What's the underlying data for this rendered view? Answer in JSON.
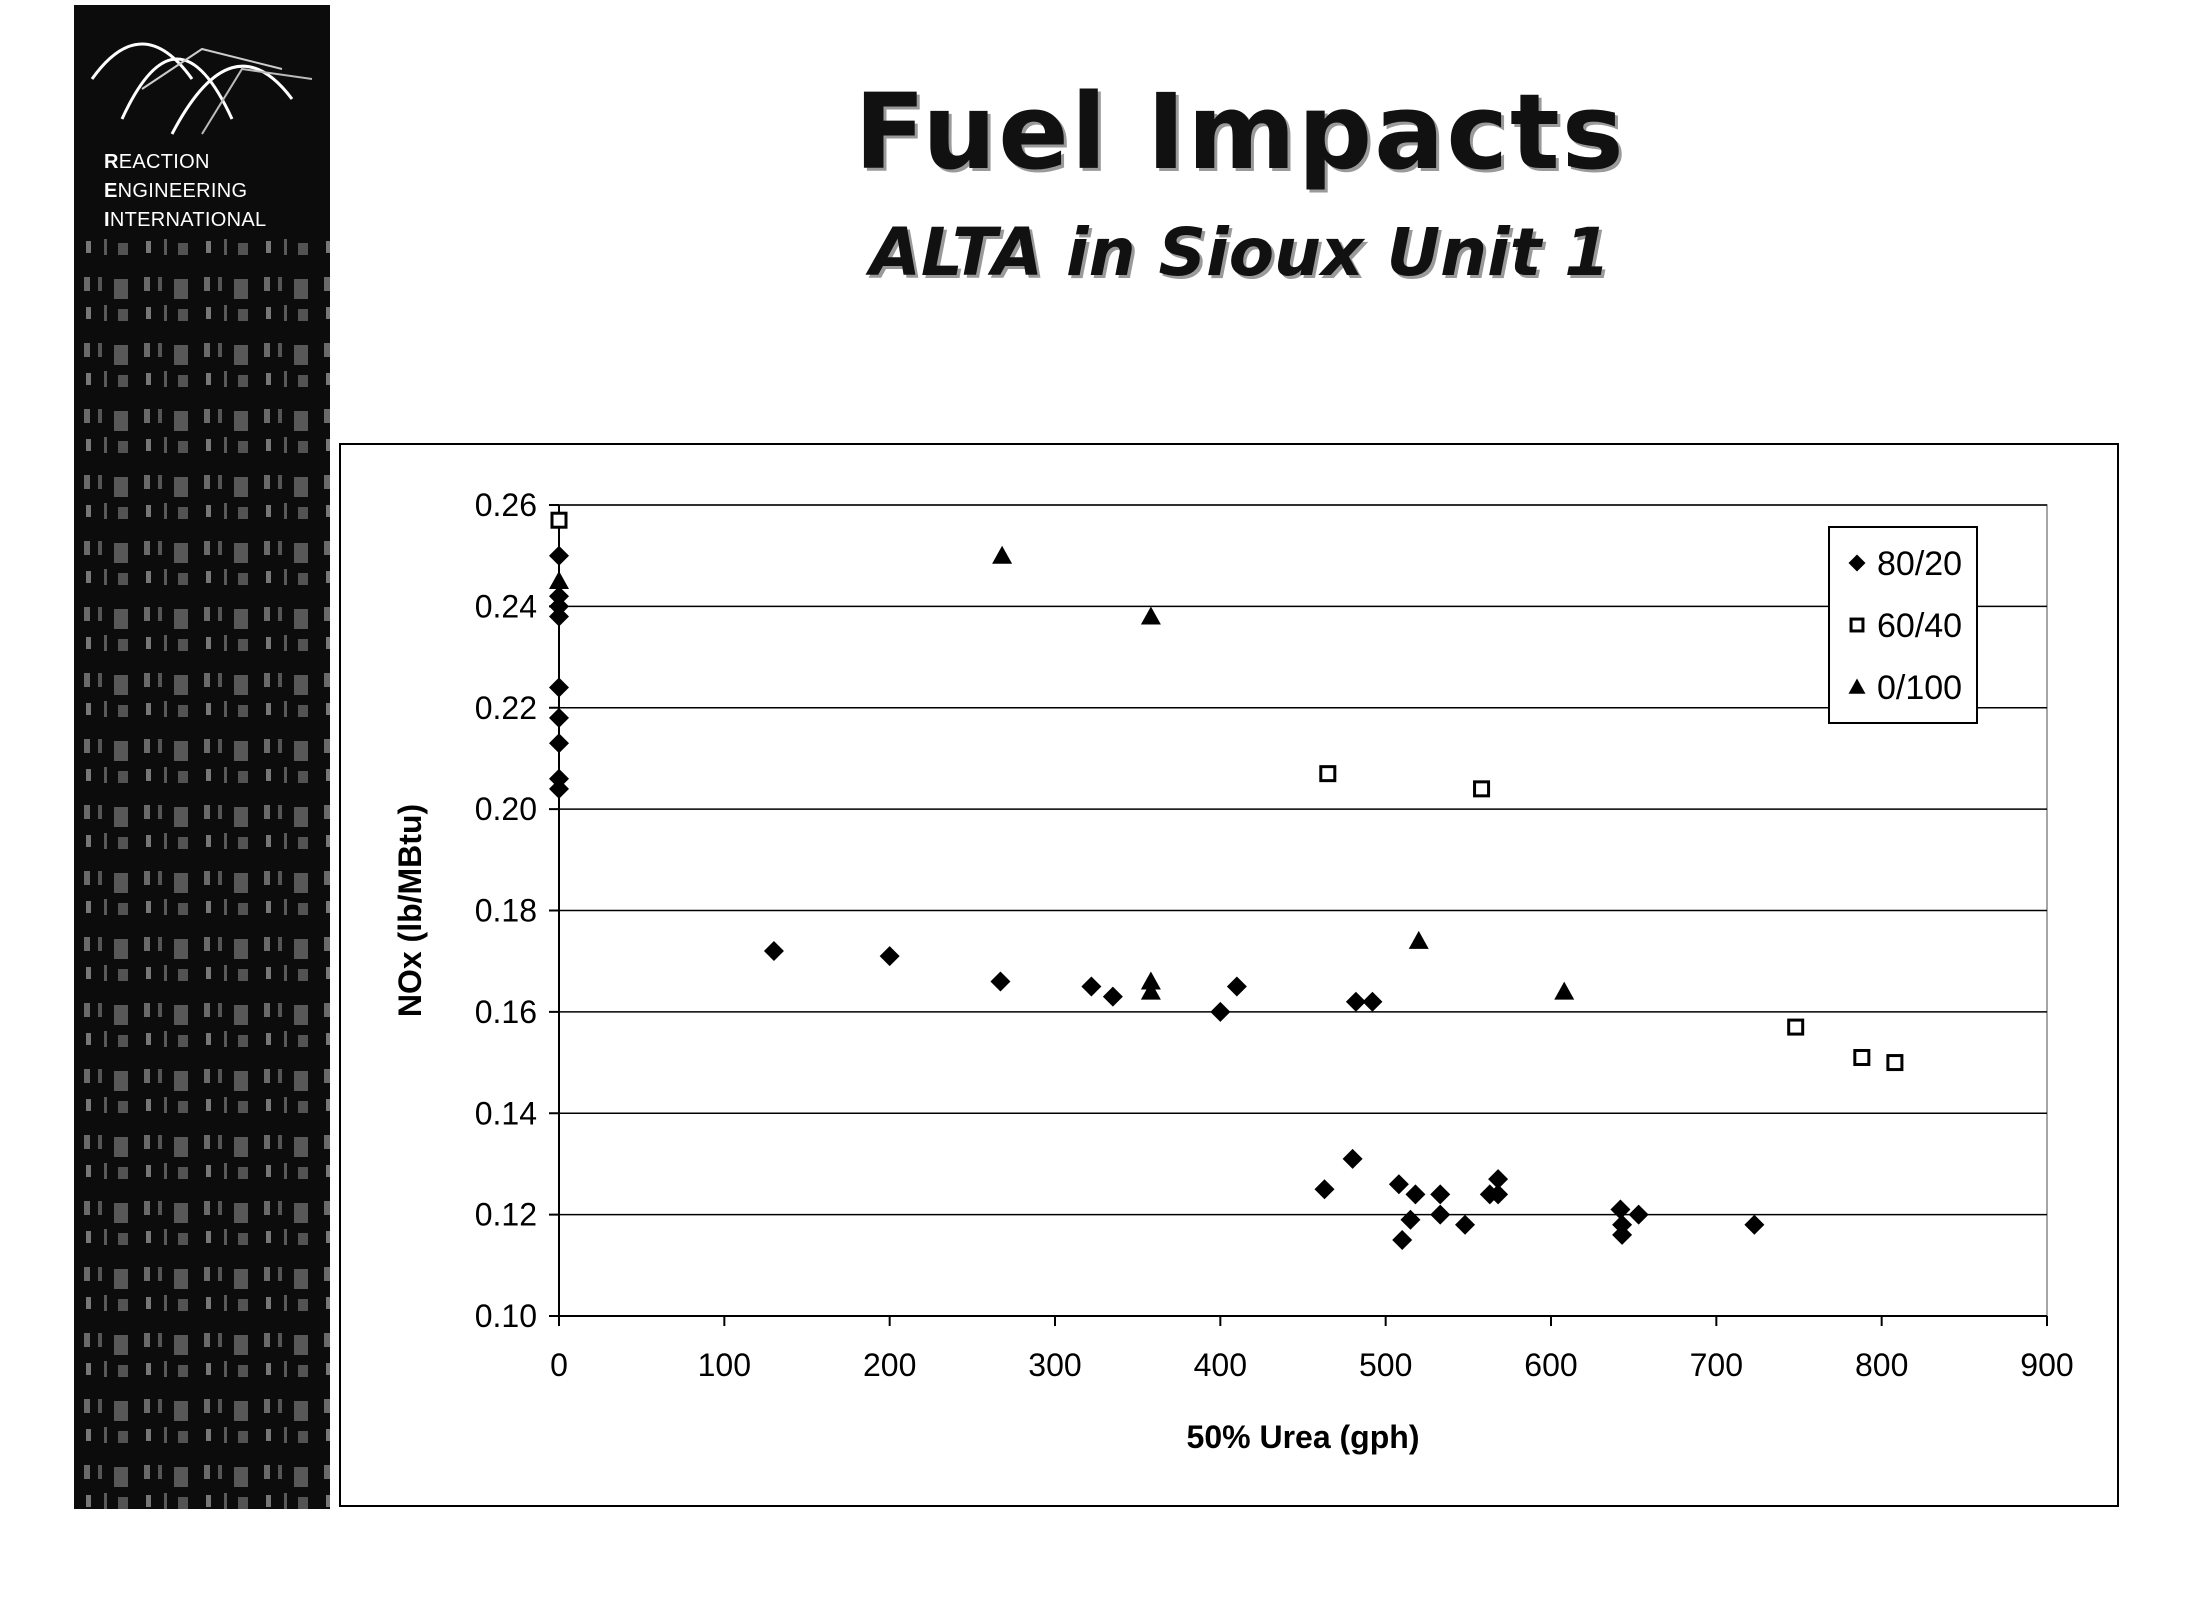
{
  "logo": {
    "lines": [
      {
        "initial": "R",
        "rest": "EACTION"
      },
      {
        "initial": "E",
        "rest": "NGINEERING"
      },
      {
        "initial": "I",
        "rest": "NTERNATIONAL"
      }
    ]
  },
  "title": "Fuel Impacts",
  "subtitle": "ALTA in Sioux Unit 1",
  "chart_data": {
    "type": "scatter",
    "xlabel": "50% Urea (gph)",
    "ylabel": "NOx (lb/MBtu)",
    "xlim": [
      0,
      900
    ],
    "ylim": [
      0.1,
      0.26
    ],
    "x_ticks": [
      0,
      100,
      200,
      300,
      400,
      500,
      600,
      700,
      800,
      900
    ],
    "y_ticks": [
      0.1,
      0.12,
      0.14,
      0.16,
      0.18,
      0.2,
      0.22,
      0.24,
      0.26
    ],
    "y_tick_labels": [
      "0.10",
      "0.12",
      "0.14",
      "0.16",
      "0.18",
      "0.20",
      "0.22",
      "0.24",
      "0.26"
    ],
    "grid": "horizontal",
    "legend_position": "top-right",
    "series": [
      {
        "name": "80/20",
        "marker": "diamond",
        "color": "#000000",
        "points": [
          [
            0,
            0.25
          ],
          [
            0,
            0.242
          ],
          [
            0,
            0.24
          ],
          [
            0,
            0.238
          ],
          [
            0,
            0.224
          ],
          [
            0,
            0.218
          ],
          [
            0,
            0.213
          ],
          [
            0,
            0.206
          ],
          [
            0,
            0.204
          ],
          [
            130,
            0.172
          ],
          [
            200,
            0.171
          ],
          [
            267,
            0.166
          ],
          [
            322,
            0.165
          ],
          [
            335,
            0.163
          ],
          [
            400,
            0.16
          ],
          [
            410,
            0.165
          ],
          [
            482,
            0.162
          ],
          [
            492,
            0.162
          ],
          [
            463,
            0.125
          ],
          [
            480,
            0.131
          ],
          [
            508,
            0.126
          ],
          [
            510,
            0.115
          ],
          [
            515,
            0.119
          ],
          [
            518,
            0.124
          ],
          [
            533,
            0.124
          ],
          [
            533,
            0.12
          ],
          [
            548,
            0.118
          ],
          [
            563,
            0.124
          ],
          [
            568,
            0.127
          ],
          [
            568,
            0.124
          ],
          [
            642,
            0.121
          ],
          [
            643,
            0.118
          ],
          [
            643,
            0.116
          ],
          [
            653,
            0.12
          ],
          [
            723,
            0.118
          ]
        ]
      },
      {
        "name": "60/40",
        "marker": "square",
        "color": "#000000",
        "points": [
          [
            0,
            0.257
          ],
          [
            465,
            0.207
          ],
          [
            558,
            0.204
          ],
          [
            748,
            0.157
          ],
          [
            788,
            0.151
          ],
          [
            808,
            0.15
          ]
        ]
      },
      {
        "name": "0/100",
        "marker": "triangle",
        "color": "#000000",
        "points": [
          [
            0,
            0.245
          ],
          [
            268,
            0.25
          ],
          [
            358,
            0.238
          ],
          [
            358,
            0.166
          ],
          [
            358,
            0.164
          ],
          [
            520,
            0.174
          ],
          [
            608,
            0.164
          ]
        ]
      }
    ]
  }
}
